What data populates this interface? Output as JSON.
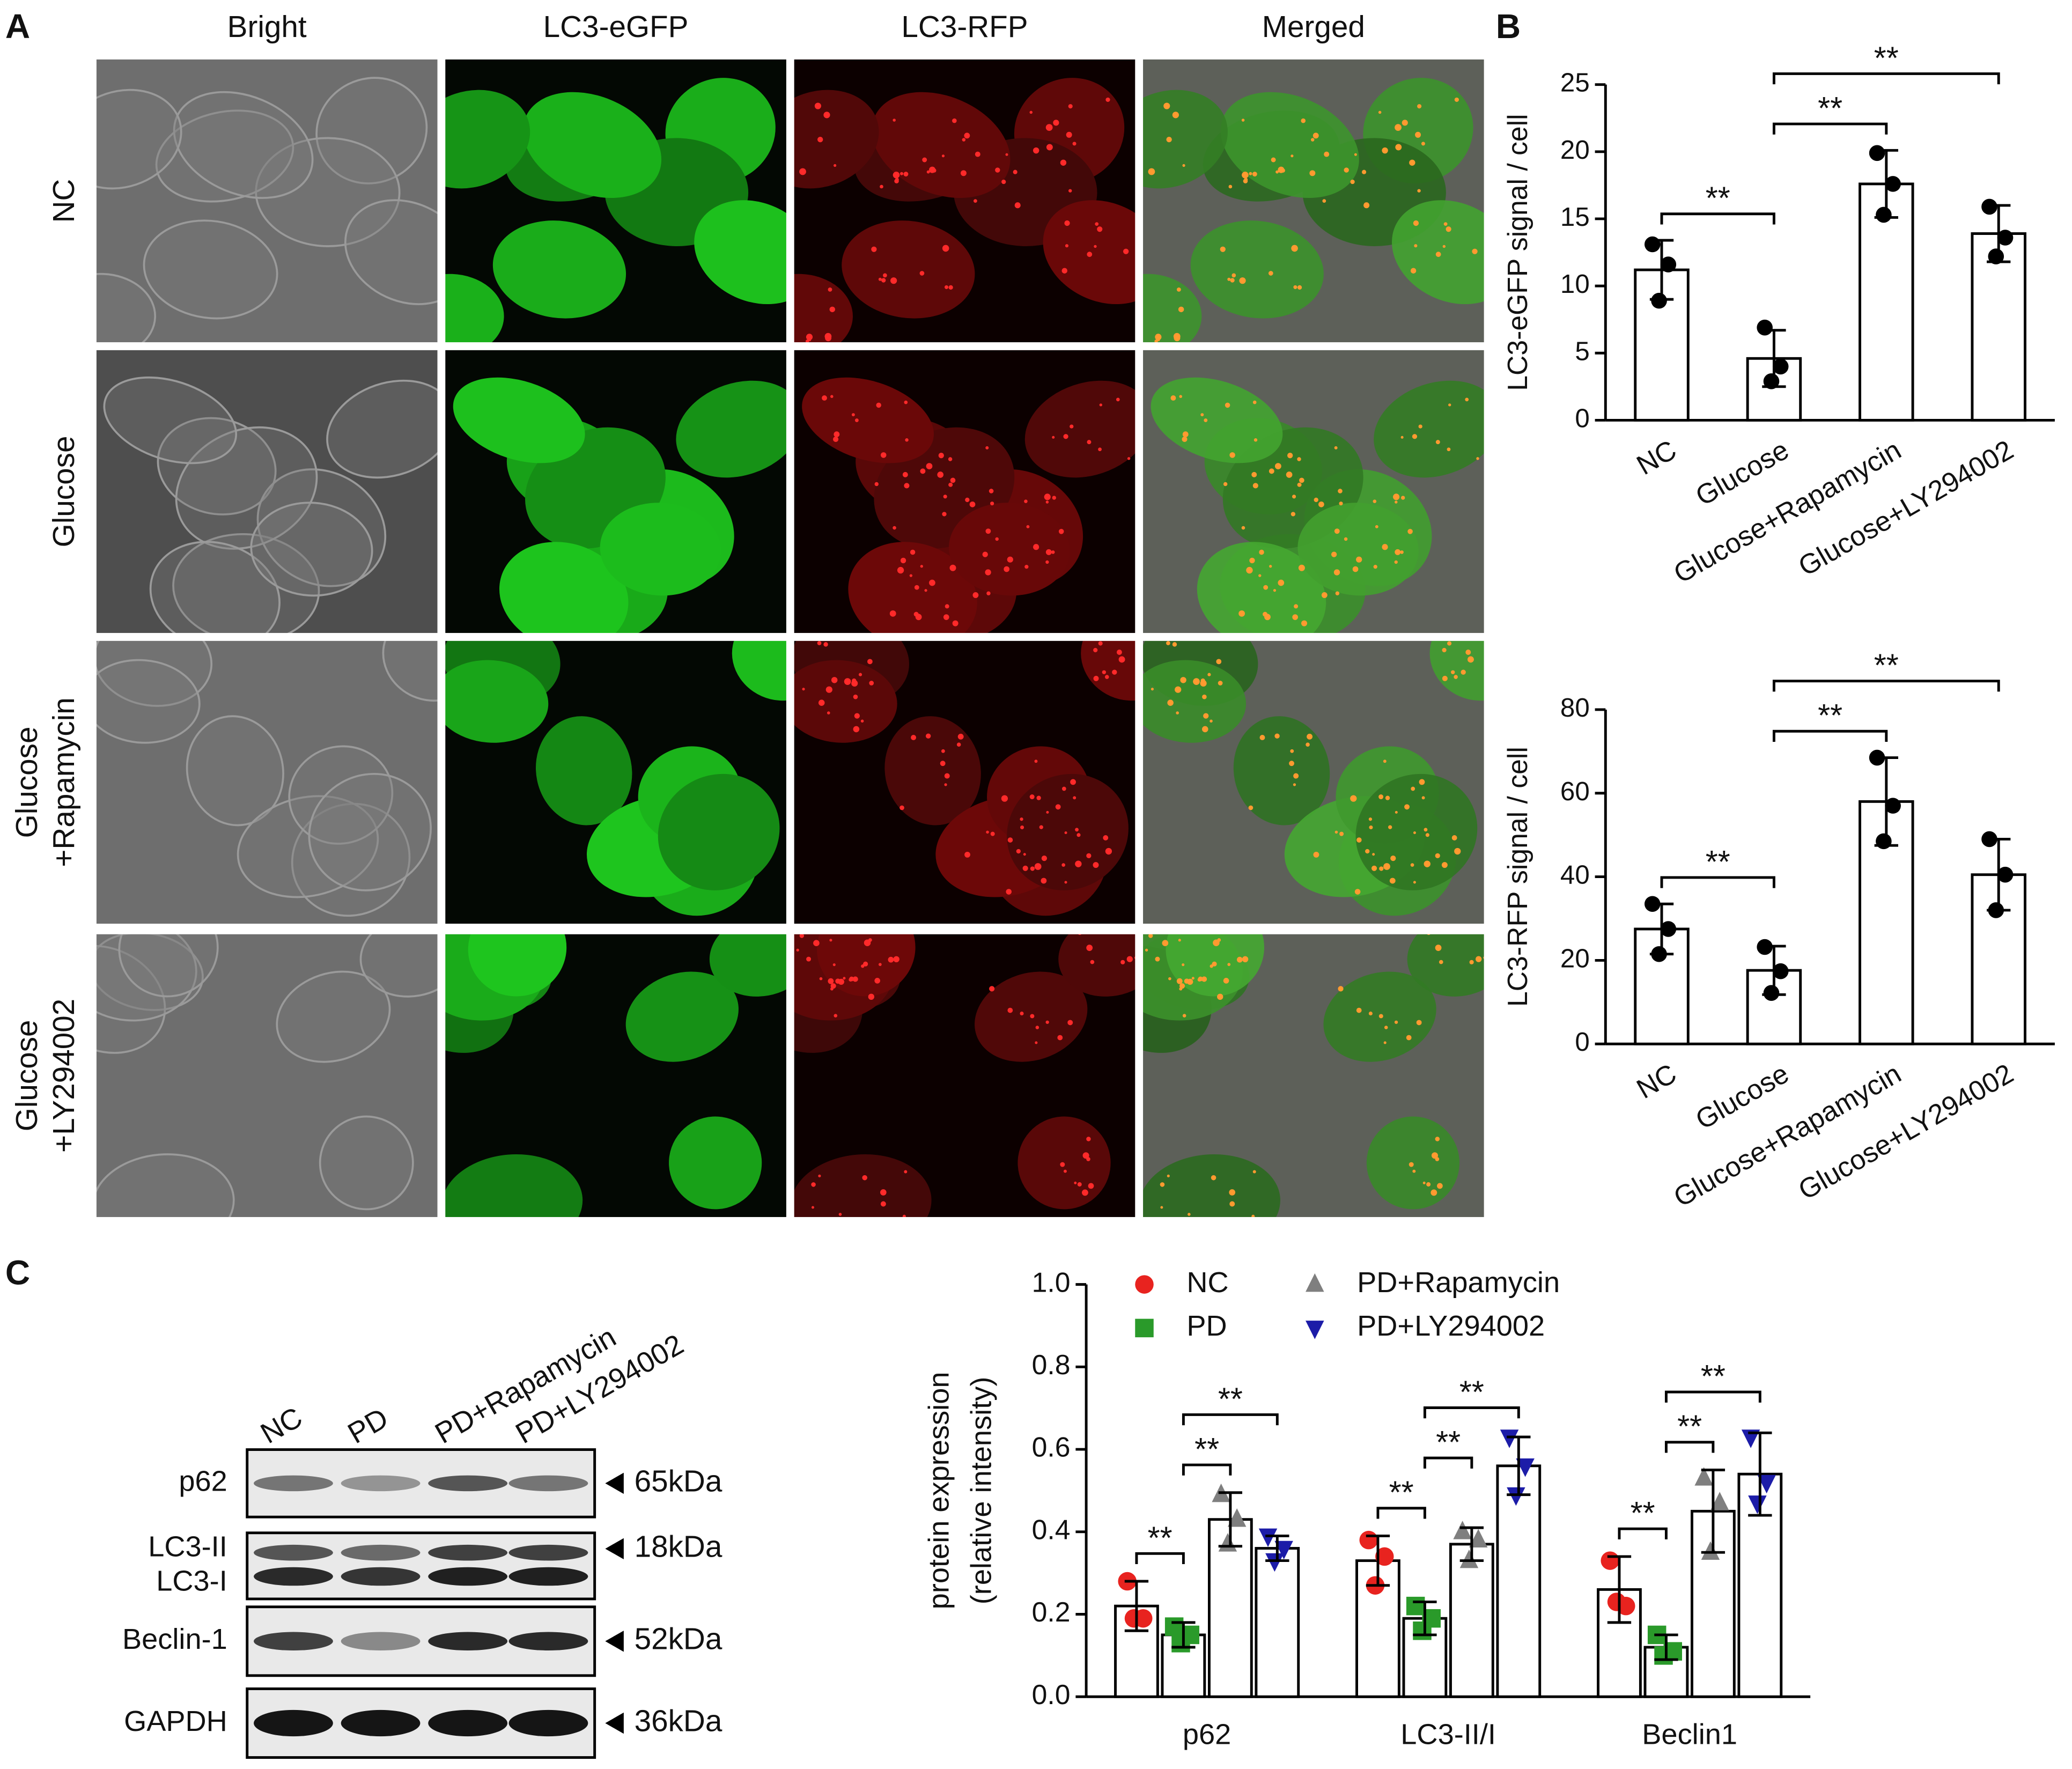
{
  "panel_labels": [
    "A",
    "B",
    "C"
  ],
  "microscopy": {
    "columns": [
      "Bright",
      "LC3-eGFP",
      "LC3-RFP",
      "Merged"
    ],
    "rows": [
      [
        "NC"
      ],
      [
        "Glucose"
      ],
      [
        "Glucose",
        "+Rapamycin"
      ],
      [
        "Glucose",
        "+LY294002"
      ]
    ]
  },
  "western_blot": {
    "lanes": [
      "NC",
      "PD",
      "PD+Rapamycin",
      "PD+LY294002"
    ],
    "rows": [
      {
        "labels": [
          "p62"
        ],
        "size": "65kDa"
      },
      {
        "labels": [
          "LC3-II",
          "LC3-I"
        ],
        "size": "18kDa"
      },
      {
        "labels": [
          "Beclin-1"
        ],
        "size": "52kDa"
      },
      {
        "labels": [
          "GAPDH"
        ],
        "size": "36kDa"
      }
    ]
  },
  "chart_data": [
    {
      "type": "bar",
      "ylabel": "LC3-eGFP signal / cell",
      "categories": [
        "NC",
        "Glucose",
        "Glucose+Rapamycin",
        "Glucose+LY294002"
      ],
      "values": [
        11.2,
        4.6,
        17.6,
        13.9
      ],
      "errors": [
        2.2,
        2.1,
        2.5,
        2.1
      ],
      "points": [
        [
          13.1,
          11.6,
          8.9
        ],
        [
          6.9,
          4.0,
          2.9
        ],
        [
          19.9,
          17.6,
          15.3
        ],
        [
          15.9,
          13.6,
          12.2
        ]
      ],
      "bar_fill": "#ffffff",
      "edge_color": "#000000",
      "point_color": "#000000",
      "ylim": [
        0,
        25
      ],
      "yticks": [
        0,
        5,
        10,
        15,
        20,
        25
      ],
      "annotations": [
        {
          "text": "**",
          "between": [
            "NC",
            "Glucose"
          ]
        },
        {
          "text": "**",
          "between": [
            "Glucose",
            "Glucose+Rapamycin"
          ]
        },
        {
          "text": "**",
          "between": [
            "Glucose",
            "Glucose+LY294002"
          ]
        }
      ]
    },
    {
      "type": "bar",
      "ylabel": "LC3-RFP signal / cell",
      "categories": [
        "NC",
        "Glucose",
        "Glucose+Rapamycin",
        "Glucose+LY294002"
      ],
      "values": [
        27.5,
        17.6,
        58.0,
        40.5
      ],
      "errors": [
        6.0,
        5.8,
        10.5,
        8.5
      ],
      "points": [
        [
          33.5,
          27.5,
          21.5
        ],
        [
          23.2,
          17.4,
          12.2
        ],
        [
          68.5,
          57.0,
          48.5
        ],
        [
          49.0,
          40.5,
          32.0
        ]
      ],
      "bar_fill": "#ffffff",
      "edge_color": "#000000",
      "point_color": "#000000",
      "ylim": [
        0,
        80
      ],
      "yticks": [
        0,
        20,
        40,
        60,
        80
      ],
      "annotations": [
        {
          "text": "**",
          "between": [
            "NC",
            "Glucose"
          ]
        },
        {
          "text": "**",
          "between": [
            "Glucose",
            "Glucose+Rapamycin"
          ]
        },
        {
          "text": "**",
          "between": [
            "Glucose",
            "Glucose+LY294002"
          ]
        }
      ]
    },
    {
      "type": "bar",
      "ylabel": [
        "protein expression",
        "(relative intensity)"
      ],
      "categories": [
        "p62",
        "LC3-II/I",
        "Beclin1"
      ],
      "legend": "top",
      "bar_fill": "#ffffff",
      "edge_color": "#000000",
      "ylim": [
        0,
        1
      ],
      "yticks": [
        {
          "value": 0,
          "label": "0.0"
        },
        0.2,
        0.4,
        0.6,
        0.8,
        {
          "value": 1,
          "label": "1.0"
        }
      ],
      "series": [
        {
          "name": "NC",
          "color": "#e8231f",
          "marker": "circle",
          "values": [
            0.22,
            0.33,
            0.26
          ],
          "errors": [
            0.06,
            0.06,
            0.08
          ],
          "points": [
            [
              0.28,
              0.19,
              0.19
            ],
            [
              0.38,
              0.34,
              0.27
            ],
            [
              0.33,
              0.22,
              0.23
            ]
          ]
        },
        {
          "name": "PD",
          "color": "#2a9a2a",
          "marker": "square",
          "values": [
            0.15,
            0.19,
            0.12
          ],
          "errors": [
            0.03,
            0.04,
            0.03
          ],
          "points": [
            [
              0.17,
              0.15,
              0.13
            ],
            [
              0.22,
              0.19,
              0.16
            ],
            [
              0.15,
              0.11,
              0.1
            ]
          ]
        },
        {
          "name": "PD+Rapamycin",
          "color": "#7f7f7f",
          "marker": "triangle",
          "values": [
            0.43,
            0.37,
            0.45
          ],
          "errors": [
            0.065,
            0.04,
            0.1
          ],
          "points": [
            [
              0.49,
              0.43,
              0.37
            ],
            [
              0.4,
              0.38,
              0.33
            ],
            [
              0.53,
              0.47,
              0.35
            ]
          ]
        },
        {
          "name": "PD+LY294002",
          "color": "#1c1ca8",
          "marker": "triangle-down",
          "values": [
            0.36,
            0.56,
            0.54
          ],
          "errors": [
            0.03,
            0.07,
            0.1
          ],
          "points": [
            [
              0.39,
              0.36,
              0.33
            ],
            [
              0.63,
              0.56,
              0.49
            ],
            [
              0.63,
              0.52,
              0.47
            ]
          ]
        }
      ],
      "annotations": [
        {
          "text": "**",
          "category": "p62",
          "between": [
            "NC",
            "PD"
          ]
        },
        {
          "text": "**",
          "category": "p62",
          "between": [
            "PD",
            "PD+Rapamycin"
          ]
        },
        {
          "text": "**",
          "category": "p62",
          "between": [
            "PD",
            "PD+LY294002"
          ]
        },
        {
          "text": "**",
          "category": "LC3-II/I",
          "between": [
            "NC",
            "PD"
          ]
        },
        {
          "text": "**",
          "category": "LC3-II/I",
          "between": [
            "PD",
            "PD+Rapamycin"
          ]
        },
        {
          "text": "**",
          "category": "LC3-II/I",
          "between": [
            "PD",
            "PD+LY294002"
          ]
        },
        {
          "text": "**",
          "category": "Beclin1",
          "between": [
            "NC",
            "PD"
          ]
        },
        {
          "text": "**",
          "category": "Beclin1",
          "between": [
            "PD",
            "PD+Rapamycin"
          ]
        },
        {
          "text": "**",
          "category": "Beclin1",
          "between": [
            "PD",
            "PD+LY294002"
          ]
        }
      ]
    }
  ]
}
